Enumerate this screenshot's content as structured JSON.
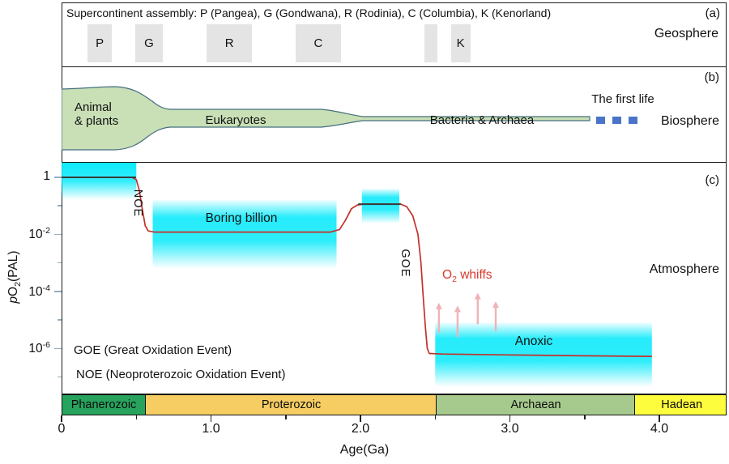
{
  "figure": {
    "geosphere": {
      "panel_label": "(a)",
      "sphere_label": "Geosphere",
      "title": "Supercontinent assembly: P (Pangea), G (Gondwana), R (Rodinia), C (Columbia), K (Kenorland)",
      "supercontinents": [
        {
          "label": "P",
          "age_start": 0.17,
          "age_end": 0.33
        },
        {
          "label": "G",
          "age_start": 0.49,
          "age_end": 0.67
        },
        {
          "label": "R",
          "age_start": 0.965,
          "age_end": 1.27
        },
        {
          "label": "C",
          "age_start": 1.56,
          "age_end": 1.865
        },
        {
          "label": "",
          "age_start": 2.42,
          "age_end": 2.51
        },
        {
          "label": "K",
          "age_start": 2.6,
          "age_end": 2.73
        }
      ]
    },
    "biosphere": {
      "panel_label": "(b)",
      "sphere_label": "Biosphere",
      "animal_line1": "Animal",
      "animal_line2": "& plants",
      "eukaryotes": "Eukaryotes",
      "bacteria_archaea": "Bacteria & Archaea",
      "first_life": "The first life"
    },
    "atmosphere": {
      "panel_label": "(c)",
      "sphere_label": "Atmosphere",
      "boring_billion": "Boring billion",
      "anoxic": "Anoxic",
      "goe_rot": "GOE",
      "noe_rot": "NOE",
      "whiffs_o": "O",
      "whiffs_sub": "2",
      "whiffs_rest": " whiffs",
      "legend_goe": "GOE (Great Oxidation Event)",
      "legend_noe": "NOE (Neoproterozoic Oxidation Event)"
    }
  },
  "axes": {
    "x_label": "Age(Ga)",
    "y_label_italic": "p",
    "y_label_main": "O",
    "y_label_sub": "2",
    "y_label_rest": "(PAL)"
  },
  "chart_data": {
    "type": "line",
    "xlabel": "Age(Ga)",
    "ylabel": "pO2(PAL)",
    "x_range_Ga": [
      0,
      4.45
    ],
    "y_scale": "log10",
    "y_range_log10": [
      0.6,
      -7.8
    ],
    "x_ticks": [
      {
        "age": 0,
        "label": "0"
      },
      {
        "age": 0.5,
        "label": ""
      },
      {
        "age": 1,
        "label": "1.0"
      },
      {
        "age": 1.5,
        "label": ""
      },
      {
        "age": 2,
        "label": "2.0"
      },
      {
        "age": 2.5,
        "label": ""
      },
      {
        "age": 3,
        "label": "3.0"
      },
      {
        "age": 3.5,
        "label": ""
      },
      {
        "age": 4,
        "label": "4.0"
      }
    ],
    "y_ticks": [
      {
        "log10": 0,
        "base": "1",
        "exp": ""
      },
      {
        "log10": -1,
        "base": "",
        "exp": ""
      },
      {
        "log10": -2,
        "base": "10",
        "exp": "-2"
      },
      {
        "log10": -3,
        "base": "",
        "exp": ""
      },
      {
        "log10": -4,
        "base": "10",
        "exp": "-4"
      },
      {
        "log10": -5,
        "base": "",
        "exp": ""
      },
      {
        "log10": -6,
        "base": "10",
        "exp": "-6"
      },
      {
        "log10": -7,
        "base": "",
        "exp": ""
      }
    ],
    "curve": {
      "name": "pO2 evolution",
      "color": "#c2312b",
      "points": [
        [
          0,
          0
        ],
        [
          0.47,
          0
        ],
        [
          0.5,
          -0.08
        ],
        [
          0.52,
          -0.45
        ],
        [
          0.54,
          -1.1
        ],
        [
          0.56,
          -1.7
        ],
        [
          0.58,
          -1.88
        ],
        [
          0.62,
          -1.92
        ],
        [
          1.2,
          -1.92
        ],
        [
          1.8,
          -1.92
        ],
        [
          1.86,
          -1.83
        ],
        [
          1.9,
          -1.5
        ],
        [
          1.94,
          -1.1
        ],
        [
          1.98,
          -0.97
        ],
        [
          2.02,
          -0.94
        ],
        [
          2.27,
          -0.94
        ],
        [
          2.31,
          -1.03
        ],
        [
          2.35,
          -1.35
        ],
        [
          2.385,
          -2.0
        ],
        [
          2.405,
          -3.0
        ],
        [
          2.42,
          -4.2
        ],
        [
          2.435,
          -5.3
        ],
        [
          2.447,
          -6.0
        ],
        [
          2.46,
          -6.18
        ],
        [
          2.55,
          -6.2
        ],
        [
          3.0,
          -6.23
        ],
        [
          3.5,
          -6.26
        ],
        [
          3.95,
          -6.28
        ]
      ]
    },
    "dark_segments": [
      {
        "age_start": 0,
        "age_end": 0.498,
        "log10": 0
      },
      {
        "age_start": 1.985,
        "age_end": 2.27,
        "log10": -0.94
      }
    ],
    "band_color": "#00e9fa",
    "bands": [
      {
        "name": "modern-oxygen-band",
        "age_start": 0,
        "age_end": 0.5,
        "log_top": 0.52,
        "log_bottom": -0.78,
        "style": "down"
      },
      {
        "name": "boring-billion-band",
        "age_start": 0.61,
        "age_end": 1.84,
        "log_top": -0.8,
        "log_bottom": -3.2,
        "style": "both"
      },
      {
        "name": "goe-overshoot-band",
        "age_start": 2.01,
        "age_end": 2.26,
        "log_top": -0.4,
        "log_bottom": -1.62,
        "style": "both"
      },
      {
        "name": "anoxic-band",
        "age_start": 2.5,
        "age_end": 3.95,
        "log_top": -5.1,
        "log_bottom": -7.35,
        "style": "both"
      }
    ],
    "whiff_arrows": {
      "color": "#efb3b7",
      "arrows": [
        {
          "age": 2.525,
          "log_from": -5.45,
          "log_to": -4.4
        },
        {
          "age": 2.65,
          "log_from": -5.6,
          "log_to": -4.5
        },
        {
          "age": 2.785,
          "log_from": -5.15,
          "log_to": -4.05
        },
        {
          "age": 2.905,
          "log_from": -5.4,
          "log_to": -4.35
        }
      ]
    },
    "eras": [
      {
        "name": "Phanerozoic",
        "age_start": 0,
        "age_end": 0.553,
        "color": "#27a35d"
      },
      {
        "name": "Proterozoic",
        "age_start": 0.553,
        "age_end": 2.499,
        "color": "#f5cd63"
      },
      {
        "name": "Archaean",
        "age_start": 2.499,
        "age_end": 3.827,
        "color": "#a6ca8d"
      },
      {
        "name": "Hadean",
        "age_start": 3.827,
        "age_end": 4.451,
        "color": "#fdfd3d"
      }
    ]
  }
}
